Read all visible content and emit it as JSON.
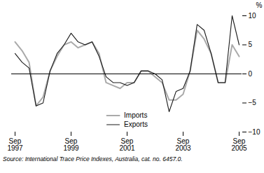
{
  "chart_data": {
    "type": "line",
    "ylabel": "%",
    "source": "Source: International Trace Price Indexes, Australia, cat. no. 6457.0.",
    "categories": [
      "Sep\n1997",
      null,
      null,
      null,
      null,
      null,
      null,
      null,
      "Sep\n1999",
      null,
      null,
      null,
      null,
      null,
      null,
      null,
      "Sep\n2001",
      null,
      null,
      null,
      null,
      null,
      null,
      null,
      "Sep\n2003",
      null,
      null,
      null,
      null,
      null,
      null,
      null,
      "Sep\n2005"
    ],
    "series": [
      {
        "name": "Imports",
        "color": "#aaaaaa",
        "values": [
          5.5,
          4.0,
          2.0,
          -5.5,
          -4.0,
          0.5,
          3.0,
          5.0,
          5.5,
          4.5,
          5.0,
          5.5,
          3.5,
          -1.5,
          -2.0,
          -2.5,
          -1.5,
          -1.5,
          0.5,
          0.5,
          -0.5,
          -1.5,
          -4.5,
          -4.5,
          -3.5,
          0.5,
          7.5,
          6.0,
          3.5,
          -1.5,
          -1.5,
          5.0,
          3.0
        ]
      },
      {
        "name": "Exports",
        "color": "#1a1a1a",
        "values": [
          3.5,
          2.0,
          1.0,
          -5.5,
          -5.0,
          0.5,
          3.5,
          5.0,
          7.0,
          5.5,
          5.0,
          5.5,
          3.0,
          -0.5,
          -1.5,
          -1.5,
          -2.0,
          -1.5,
          0.5,
          0.5,
          0.0,
          -1.0,
          -6.5,
          -3.0,
          -2.5,
          0.5,
          8.5,
          7.5,
          3.5,
          -1.5,
          -1.5,
          10.0,
          5.0
        ]
      }
    ],
    "ylim": [
      -10,
      10
    ],
    "yticks": [
      -10,
      -5,
      0,
      5,
      10
    ],
    "grid": false,
    "legend": "lower center",
    "reference_lines": [
      {
        "y": 0,
        "color": "#000000"
      }
    ]
  }
}
